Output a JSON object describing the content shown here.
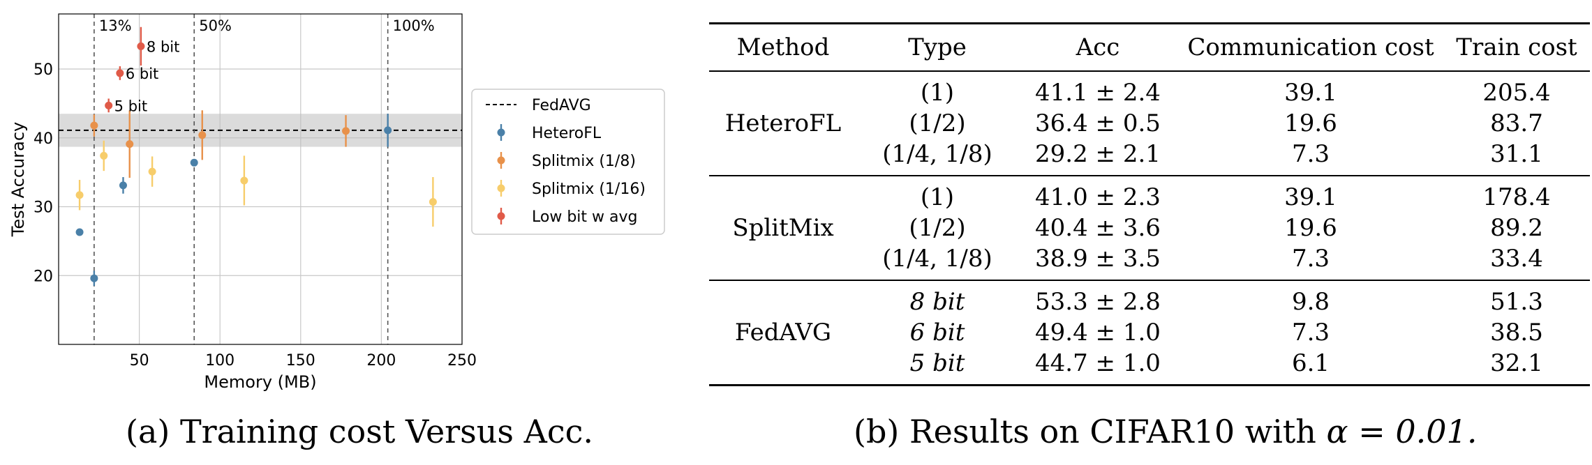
{
  "chart_data": {
    "type": "scatter",
    "xlabel": "Memory (MB)",
    "ylabel": "Test Accuracy",
    "xlim": [
      0,
      250
    ],
    "ylim": [
      10,
      58
    ],
    "xticks": [
      50,
      100,
      150,
      200,
      250
    ],
    "yticks": [
      20,
      30,
      40,
      50
    ],
    "grid": true,
    "legend_position": "outside-right",
    "vlines": [
      {
        "x": 22,
        "label": "13%"
      },
      {
        "x": 84,
        "label": "50%"
      },
      {
        "x": 204,
        "label": "100%"
      }
    ],
    "fedavg_band": {
      "y": 41.1,
      "low": 38.7,
      "high": 43.5
    },
    "series": [
      {
        "name": "HeteroFL",
        "color": "#4a80a8",
        "points": [
          {
            "x": 13,
            "y": 26.3,
            "err": 0
          },
          {
            "x": 22,
            "y": 19.6,
            "err": 1.1
          },
          {
            "x": 40,
            "y": 33.1,
            "err": 1.2
          },
          {
            "x": 84,
            "y": 36.4,
            "err": 0.5
          },
          {
            "x": 204,
            "y": 41.1,
            "err": 2.4
          }
        ]
      },
      {
        "name": "Splitmix (1/8)",
        "color": "#e8914a",
        "points": [
          {
            "x": 22,
            "y": 41.8,
            "err": 1.6
          },
          {
            "x": 44,
            "y": 39.1,
            "err": 4.9
          },
          {
            "x": 89,
            "y": 40.4,
            "err": 3.6
          },
          {
            "x": 178,
            "y": 41.0,
            "err": 2.3
          }
        ]
      },
      {
        "name": "Splitmix (1/16)",
        "color": "#f7cd6b",
        "points": [
          {
            "x": 13,
            "y": 31.7,
            "err": 2.2
          },
          {
            "x": 28,
            "y": 37.4,
            "err": 2.2
          },
          {
            "x": 58,
            "y": 35.1,
            "err": 2.2
          },
          {
            "x": 115,
            "y": 33.8,
            "err": 3.6
          },
          {
            "x": 232,
            "y": 30.7,
            "err": 3.6
          }
        ]
      },
      {
        "name": "Low bit w avg",
        "color": "#e05a48",
        "points": [
          {
            "x": 31,
            "y": 44.7,
            "err": 1.0,
            "label": "5 bit"
          },
          {
            "x": 38,
            "y": 49.4,
            "err": 1.0,
            "label": "6 bit"
          },
          {
            "x": 51,
            "y": 53.3,
            "err": 2.8,
            "label": "8 bit"
          }
        ]
      }
    ],
    "legend_entries": [
      "FedAVG",
      "HeteroFL",
      "Splitmix (1/8)",
      "Splitmix (1/16)",
      "Low bit w avg"
    ]
  },
  "captions": {
    "left": "(a) Training cost Versus Acc.",
    "right_prefix": "(b) Results on CIFAR10 with ",
    "right_math": "α = 0.01."
  },
  "table": {
    "headers": [
      "Method",
      "Type",
      "Acc",
      "Communication cost",
      "Train cost"
    ],
    "groups": [
      {
        "method": "HeteroFL",
        "types": [
          "(1)",
          "(1/2)",
          "(1/4, 1/8)"
        ],
        "acc": [
          "41.1 ± 2.4",
          "36.4 ± 0.5",
          "29.2 ± 2.1"
        ],
        "comm": [
          "39.1",
          "19.6",
          "7.3"
        ],
        "train": [
          "205.4",
          "83.7",
          "31.1"
        ]
      },
      {
        "method": "SplitMix",
        "types": [
          "(1)",
          "(1/2)",
          "(1/4, 1/8)"
        ],
        "acc": [
          "41.0 ± 2.3",
          "40.4 ± 3.6",
          "38.9 ± 3.5"
        ],
        "comm": [
          "39.1",
          "19.6",
          "7.3"
        ],
        "train": [
          "178.4",
          "89.2",
          "33.4"
        ]
      },
      {
        "method": "FedAVG",
        "types": [
          "8 bit",
          "6 bit",
          "5 bit"
        ],
        "acc": [
          "53.3 ± 2.8",
          "49.4 ± 1.0",
          "44.7 ± 1.0"
        ],
        "comm": [
          "9.8",
          "7.3",
          "6.1"
        ],
        "train": [
          "51.3",
          "38.5",
          "32.1"
        ]
      }
    ]
  }
}
